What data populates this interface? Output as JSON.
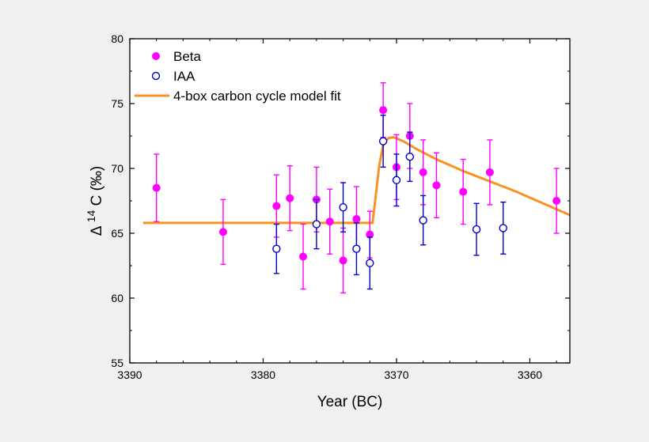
{
  "chart_data": {
    "type": "scatter",
    "title": "",
    "xlabel": "Year (BC)",
    "ylabel_prefix": "Δ",
    "ylabel_sup": "14",
    "ylabel_main": "C (‰)",
    "xlim": [
      3390,
      3357
    ],
    "ylim": [
      55,
      80
    ],
    "xticks": [
      3390,
      3380,
      3370,
      3360
    ],
    "yticks": [
      55,
      60,
      65,
      70,
      75,
      80
    ],
    "legend_position": "top-left",
    "series": [
      {
        "name": "Beta",
        "kind": "points",
        "marker": "filled-circle",
        "color": "#ff00ff",
        "points": [
          {
            "x": 3388,
            "y": 68.5,
            "err": 2.6
          },
          {
            "x": 3383,
            "y": 65.1,
            "err": 2.5
          },
          {
            "x": 3379,
            "y": 67.1,
            "err": 2.4
          },
          {
            "x": 3378,
            "y": 67.7,
            "err": 2.5
          },
          {
            "x": 3377,
            "y": 63.2,
            "err": 2.5
          },
          {
            "x": 3376,
            "y": 67.6,
            "err": 2.5
          },
          {
            "x": 3375,
            "y": 65.9,
            "err": 2.5
          },
          {
            "x": 3374,
            "y": 62.9,
            "err": 2.5
          },
          {
            "x": 3373,
            "y": 66.1,
            "err": 2.5
          },
          {
            "x": 3372,
            "y": 64.9,
            "err": 1.8
          },
          {
            "x": 3371,
            "y": 74.5,
            "err": 2.1
          },
          {
            "x": 3370,
            "y": 70.1,
            "err": 2.5
          },
          {
            "x": 3369,
            "y": 72.5,
            "err": 2.5
          },
          {
            "x": 3368,
            "y": 69.7,
            "err": 2.5
          },
          {
            "x": 3367,
            "y": 68.7,
            "err": 2.5
          },
          {
            "x": 3365,
            "y": 68.2,
            "err": 2.5
          },
          {
            "x": 3363,
            "y": 69.7,
            "err": 2.5
          },
          {
            "x": 3358,
            "y": 67.5,
            "err": 2.5
          }
        ]
      },
      {
        "name": "IAA",
        "kind": "points",
        "marker": "open-circle",
        "color": "#0000cc",
        "points": [
          {
            "x": 3379,
            "y": 63.8,
            "err": 1.9
          },
          {
            "x": 3376,
            "y": 65.7,
            "err": 1.9
          },
          {
            "x": 3374,
            "y": 67.0,
            "err": 1.9
          },
          {
            "x": 3373,
            "y": 63.8,
            "err": 2.0
          },
          {
            "x": 3372,
            "y": 62.7,
            "err": 2.0
          },
          {
            "x": 3371,
            "y": 72.1,
            "err": 2.0
          },
          {
            "x": 3370,
            "y": 69.1,
            "err": 2.0
          },
          {
            "x": 3369,
            "y": 70.9,
            "err": 1.9
          },
          {
            "x": 3368,
            "y": 66.0,
            "err": 1.9
          },
          {
            "x": 3364,
            "y": 65.3,
            "err": 2.0
          },
          {
            "x": 3362,
            "y": 65.4,
            "err": 2.0
          }
        ]
      },
      {
        "name": "4-box carbon cycle model fit",
        "kind": "line",
        "color": "#f7931e",
        "points": [
          {
            "x": 3389,
            "y": 65.8
          },
          {
            "x": 3371.8,
            "y": 65.8
          },
          {
            "x": 3371.6,
            "y": 67.5
          },
          {
            "x": 3371.3,
            "y": 70.2
          },
          {
            "x": 3371.0,
            "y": 71.8
          },
          {
            "x": 3370.6,
            "y": 72.35
          },
          {
            "x": 3370.2,
            "y": 72.4
          },
          {
            "x": 3369.5,
            "y": 72.1
          },
          {
            "x": 3368.5,
            "y": 71.5
          },
          {
            "x": 3367,
            "y": 70.7
          },
          {
            "x": 3365,
            "y": 69.8
          },
          {
            "x": 3363,
            "y": 69.0
          },
          {
            "x": 3361,
            "y": 68.2
          },
          {
            "x": 3359,
            "y": 67.3
          },
          {
            "x": 3357,
            "y": 66.4
          }
        ]
      }
    ]
  }
}
